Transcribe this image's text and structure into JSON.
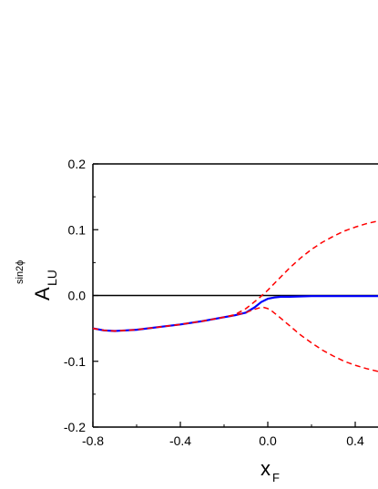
{
  "chart_data": {
    "type": "line",
    "ylabel": {
      "main": "A",
      "sub": "LU",
      "sup": "sin2ϕ"
    },
    "xlabel": {
      "main": "x",
      "sub": "F"
    },
    "xlim": [
      -0.8,
      0.55
    ],
    "ylim": [
      -0.2,
      0.2
    ],
    "x_ticks": [
      -0.8,
      -0.4,
      0.0,
      0.4
    ],
    "x_tick_labels": [
      "-0.8",
      "-0.4",
      "0.0",
      "0.4"
    ],
    "y_ticks": [
      -0.2,
      -0.1,
      0.0,
      0.1,
      0.2
    ],
    "y_tick_labels": [
      "-0.2",
      "-0.1",
      "0.0",
      "0.1",
      "0.2"
    ],
    "zero_line": true,
    "grid": false,
    "series": [
      {
        "style": "solid",
        "color": "#0000ff",
        "x": [
          -0.8,
          -0.75,
          -0.7,
          -0.65,
          -0.6,
          -0.5,
          -0.4,
          -0.3,
          -0.2,
          -0.15,
          -0.1,
          -0.06,
          -0.03,
          0.0,
          0.03,
          0.06,
          0.1,
          0.2,
          0.3,
          0.4,
          0.5,
          0.55
        ],
        "y": [
          -0.05,
          -0.053,
          -0.054,
          -0.053,
          -0.052,
          -0.048,
          -0.044,
          -0.039,
          -0.033,
          -0.03,
          -0.026,
          -0.018,
          -0.01,
          -0.005,
          -0.003,
          -0.002,
          -0.002,
          -0.001,
          -0.001,
          -0.001,
          -0.001,
          -0.001
        ]
      },
      {
        "style": "dashed",
        "color": "#ff0000",
        "x": [
          -0.8,
          -0.75,
          -0.7,
          -0.65,
          -0.6,
          -0.5,
          -0.4,
          -0.3,
          -0.2,
          -0.15,
          -0.1,
          -0.07,
          -0.04,
          -0.02,
          0.0,
          0.02,
          0.05,
          0.1,
          0.15,
          0.2,
          0.25,
          0.3,
          0.35,
          0.4,
          0.45,
          0.5,
          0.55
        ],
        "y": [
          -0.05,
          -0.053,
          -0.054,
          -0.053,
          -0.052,
          -0.048,
          -0.044,
          -0.039,
          -0.033,
          -0.029,
          -0.02,
          -0.012,
          -0.004,
          0.002,
          0.008,
          0.015,
          0.025,
          0.042,
          0.057,
          0.07,
          0.081,
          0.09,
          0.098,
          0.104,
          0.109,
          0.113,
          0.116
        ]
      },
      {
        "style": "dashed",
        "color": "#ff0000",
        "x": [
          -0.8,
          -0.75,
          -0.7,
          -0.65,
          -0.6,
          -0.5,
          -0.4,
          -0.3,
          -0.2,
          -0.15,
          -0.1,
          -0.07,
          -0.04,
          -0.02,
          0.0,
          0.02,
          0.05,
          0.1,
          0.15,
          0.2,
          0.25,
          0.3,
          0.35,
          0.4,
          0.45,
          0.5,
          0.55
        ],
        "y": [
          -0.05,
          -0.053,
          -0.054,
          -0.053,
          -0.052,
          -0.048,
          -0.044,
          -0.039,
          -0.033,
          -0.03,
          -0.026,
          -0.022,
          -0.019,
          -0.018,
          -0.02,
          -0.024,
          -0.032,
          -0.046,
          -0.06,
          -0.072,
          -0.083,
          -0.092,
          -0.1,
          -0.106,
          -0.111,
          -0.115,
          -0.118
        ]
      }
    ]
  }
}
